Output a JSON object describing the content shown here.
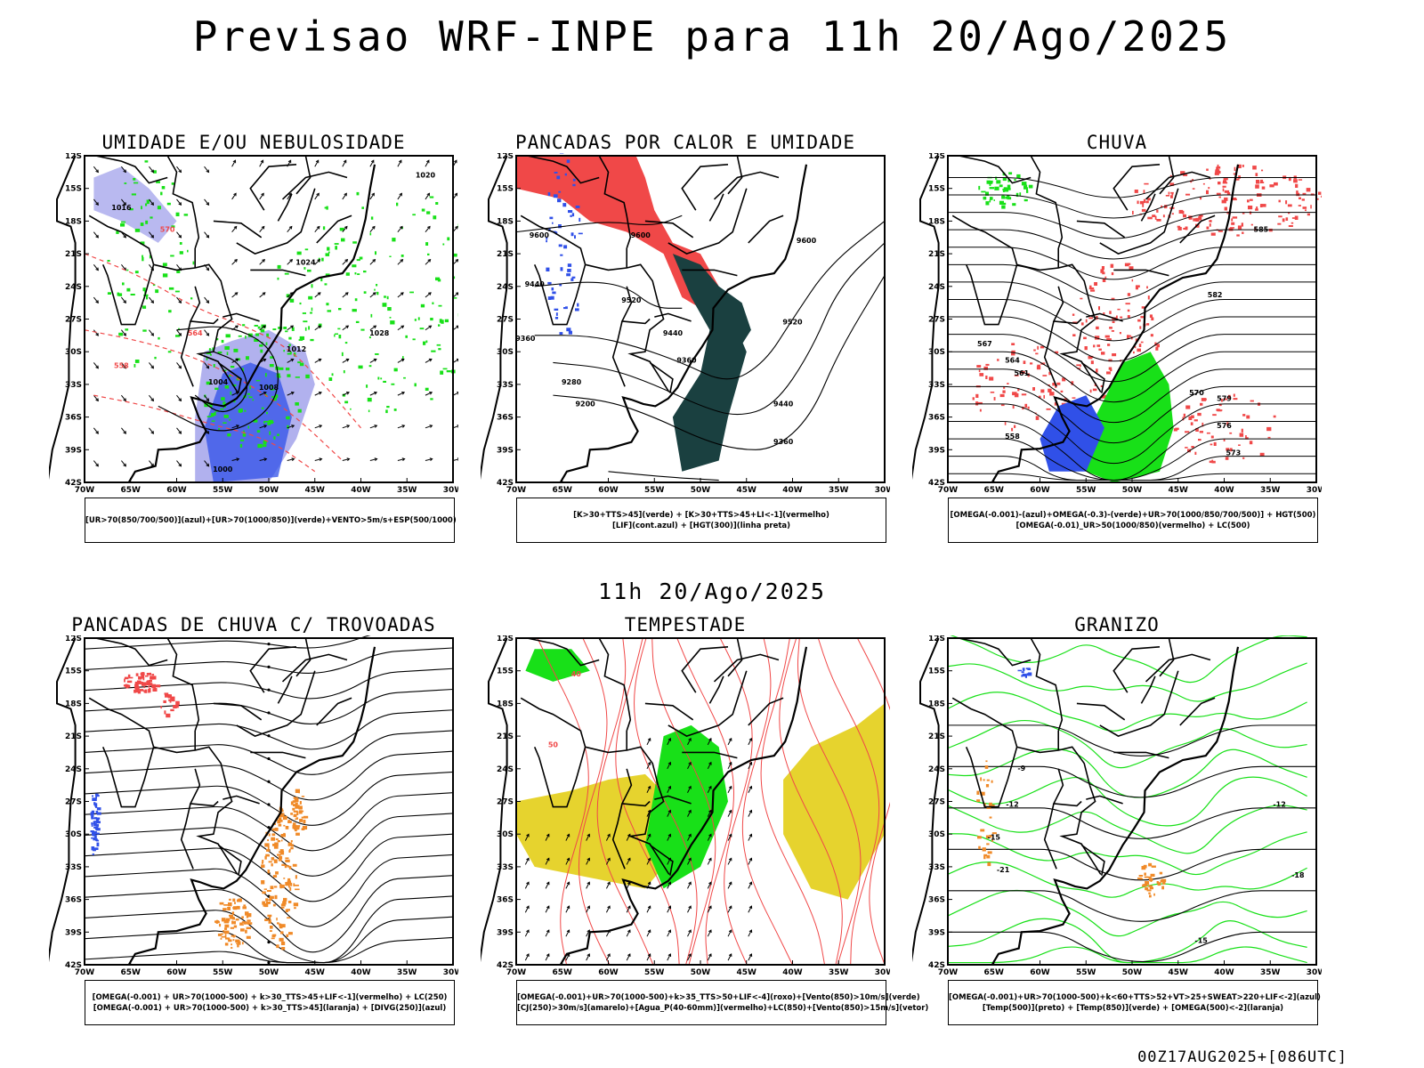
{
  "title": "Previsao WRF-INPE  para 11h 20/Ago/2025",
  "mid_title": "11h 20/Ago/2025",
  "footer": "00Z17AUG2025+[086UTC]",
  "lat_labels": [
    "12S",
    "15S",
    "18S",
    "21S",
    "24S",
    "27S",
    "30S",
    "33S",
    "36S",
    "39S",
    "42S"
  ],
  "lon_labels": [
    "70W",
    "65W",
    "60W",
    "55W",
    "50W",
    "45W",
    "40W",
    "35W",
    "30W"
  ],
  "colors": {
    "red": "#f04848",
    "green": "#18e018",
    "blue": "#3050e8",
    "lavender": "#a8a8ec",
    "darkteal": "#1a4040",
    "orange": "#f08a28",
    "yellow": "#e6d32e",
    "black": "#000000"
  },
  "panels": [
    {
      "title": "UMIDADE E/OU NEBULOSIDADE",
      "legend": [
        "[UR>70(850/700/500)](azul)+[UR>70(1000/850)](verde)+VENTO>5m/s+ESP(500/1000)"
      ],
      "labels": [
        "1020",
        "1016",
        "1024",
        "1028",
        "1012",
        "1008",
        "1004",
        "1000",
        "570",
        "564",
        "558"
      ]
    },
    {
      "title": "PANCADAS POR CALOR E UMIDADE",
      "legend": [
        "[K>30+TTS>45](verde) + [K>30+TTS>45+LI<-1](vermelho)",
        "[LIF](cont.azul) + [HGT(300)](linha preta)"
      ],
      "labels": [
        "9600",
        "9520",
        "9440",
        "9360",
        "9280",
        "9200"
      ]
    },
    {
      "title": "CHUVA",
      "legend": [
        "[OMEGA(-0.001)-(azul)+OMEGA(-0.3)-(verde)+UR>70(1000/850/700/500)] + HGT(500)",
        "[OMEGA(-0.01)_UR>50(1000/850)(vermelho) + LC(500)"
      ],
      "labels": [
        "585",
        "582",
        "579",
        "576",
        "573",
        "570",
        "567",
        "564",
        "561",
        "558"
      ]
    },
    {
      "title": "PANCADAS DE CHUVA C/ TROVOADAS",
      "legend": [
        "[OMEGA(-0.001) + UR>70(1000-500) + k>30_TTS>45+LIF<-1](vermelho) + LC(250)",
        "[OMEGA(-0.001) + UR>70(1000-500) + k>30_TTS>45](laranja) + [DIVG(250)](azul)"
      ],
      "labels": []
    },
    {
      "title": "TEMPESTADE",
      "legend": [
        "[OMEGA(-0.001)+UR>70(1000-500)+k>35_TTS>50+LIF<-4](roxo)+[Vento(850)>10m/s](verde)",
        "[CJ(250)>30m/s](amarelo)+[Agua_P(40-60mm)](vermelho)+LC(850)+[Vento(850)>15m/s](vetor)"
      ],
      "labels": [
        "40",
        "50"
      ]
    },
    {
      "title": "GRANIZO",
      "legend": [
        "[OMEGA(-0.001)+UR>70(1000-500)+k<60+TTS>52+VT>25+SWEAT>220+LIF<-2](azul)",
        "[Temp(500)](preto) + [Temp(850)](verde) + [OMEGA(500)<-2](laranja)"
      ],
      "labels": [
        "-9",
        "-12",
        "-15",
        "-18",
        "-21",
        "-12",
        "-15"
      ]
    }
  ]
}
